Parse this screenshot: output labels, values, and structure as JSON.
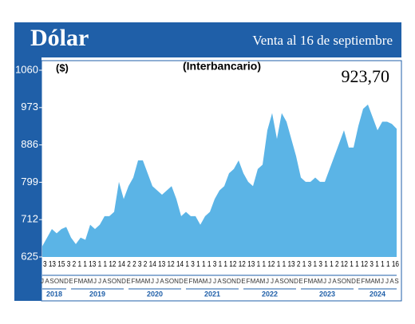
{
  "chart_data": {
    "type": "area",
    "title": "Dólar",
    "subtitle": "Venta al 16 de septiembre",
    "unit_label": "($)",
    "series_label": "(Interbancario)",
    "annotation": "923,70",
    "day_strip": "3 13 15 3 2 1 1 13 1 1 12 14 2 2 3 2 14 13 12 14 1 3 1 1 1 3 1 1 12 12 13 1 1 12 1 1 13 2 1 3 1 3 1 1 2 12 1 1 12 3 1 1 1 16",
    "categories": [
      "J",
      "A",
      "S",
      "O",
      "N",
      "D",
      "E",
      "F",
      "M",
      "A",
      "M",
      "J",
      "J",
      "A",
      "S",
      "O",
      "N",
      "D",
      "E",
      "F",
      "M",
      "A",
      "M",
      "J",
      "J",
      "A",
      "S",
      "O",
      "N",
      "D",
      "E",
      "F",
      "M",
      "A",
      "M",
      "J",
      "J",
      "A",
      "S",
      "O",
      "N",
      "D",
      "E",
      "F",
      "M",
      "A",
      "M",
      "J",
      "J",
      "A",
      "S",
      "O",
      "N",
      "D",
      "E",
      "F",
      "M",
      "A",
      "M",
      "J",
      "J",
      "A",
      "S",
      "O",
      "N",
      "D",
      "E",
      "F",
      "M",
      "A",
      "M",
      "J",
      "J",
      "A",
      "S"
    ],
    "years": [
      "2018",
      "2019",
      "2020",
      "2021",
      "2022",
      "2023",
      "2024"
    ],
    "color": "#5bb4e6",
    "values": [
      650,
      670,
      690,
      680,
      690,
      695,
      670,
      655,
      670,
      665,
      700,
      690,
      700,
      720,
      720,
      730,
      800,
      760,
      790,
      810,
      850,
      850,
      820,
      790,
      780,
      770,
      780,
      790,
      760,
      720,
      730,
      720,
      720,
      700,
      720,
      730,
      760,
      780,
      790,
      820,
      830,
      850,
      820,
      800,
      790,
      830,
      840,
      920,
      960,
      900,
      960,
      940,
      900,
      860,
      810,
      800,
      800,
      810,
      800,
      800,
      830,
      860,
      890,
      920,
      880,
      880,
      930,
      970,
      980,
      950,
      920,
      940,
      940,
      935,
      923.7
    ],
    "ylim": [
      625,
      1060
    ],
    "yticks": [
      625,
      712,
      799,
      886,
      973,
      1060
    ]
  }
}
